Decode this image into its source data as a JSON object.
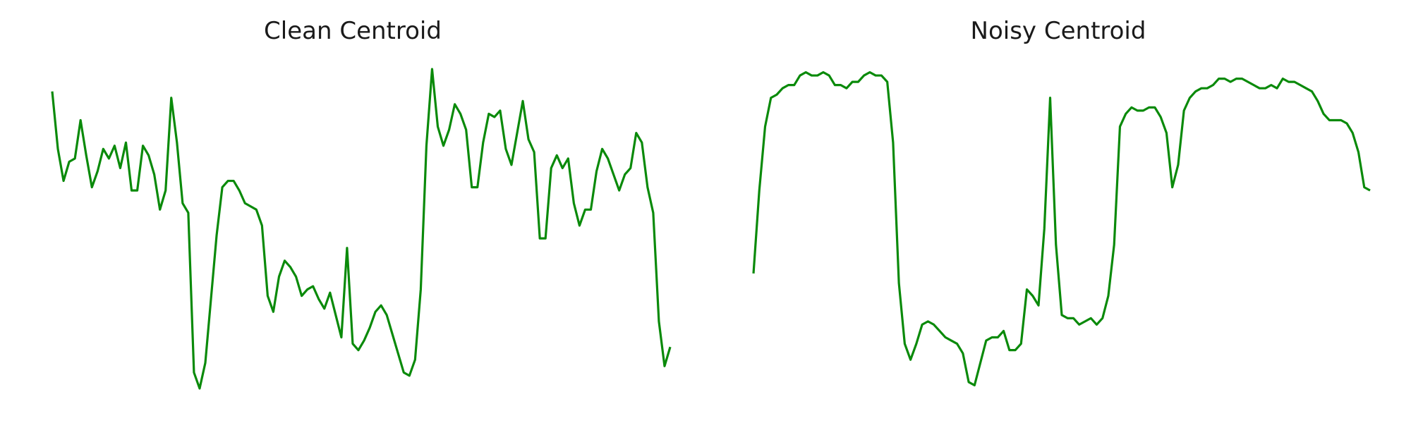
{
  "chart_data": [
    {
      "type": "line",
      "title": "Clean Centroid",
      "xlabel": "",
      "ylabel": "",
      "grid": false,
      "axes_visible": false,
      "ylim": [
        0,
        1
      ],
      "line_color": "#0a8a0a",
      "series": [
        {
          "values": [
            0.93,
            0.75,
            0.65,
            0.71,
            0.72,
            0.84,
            0.73,
            0.63,
            0.68,
            0.75,
            0.72,
            0.76,
            0.69,
            0.77,
            0.62,
            0.62,
            0.76,
            0.73,
            0.67,
            0.56,
            0.62,
            0.91,
            0.77,
            0.58,
            0.55,
            0.05,
            0.0,
            0.08,
            0.28,
            0.48,
            0.63,
            0.65,
            0.65,
            0.62,
            0.58,
            0.57,
            0.56,
            0.51,
            0.29,
            0.24,
            0.35,
            0.4,
            0.38,
            0.35,
            0.29,
            0.31,
            0.32,
            0.28,
            0.25,
            0.3,
            0.23,
            0.16,
            0.44,
            0.14,
            0.12,
            0.15,
            0.19,
            0.24,
            0.26,
            0.23,
            0.17,
            0.11,
            0.05,
            0.04,
            0.09,
            0.31,
            0.76,
            1.0,
            0.82,
            0.76,
            0.81,
            0.89,
            0.86,
            0.81,
            0.63,
            0.63,
            0.77,
            0.86,
            0.85,
            0.87,
            0.75,
            0.7,
            0.8,
            0.9,
            0.78,
            0.74,
            0.47,
            0.47,
            0.69,
            0.73,
            0.69,
            0.72,
            0.58,
            0.51,
            0.56,
            0.56,
            0.68,
            0.75,
            0.72,
            0.67,
            0.62,
            0.67,
            0.69,
            0.8,
            0.77,
            0.63,
            0.55,
            0.21,
            0.07,
            0.13
          ]
        }
      ]
    },
    {
      "type": "line",
      "title": "Noisy Centroid",
      "xlabel": "",
      "ylabel": "",
      "grid": false,
      "axes_visible": false,
      "ylim": [
        0,
        1
      ],
      "line_color": "#0a8a0a",
      "series": [
        {
          "values": [
            0.36,
            0.62,
            0.82,
            0.91,
            0.92,
            0.94,
            0.95,
            0.95,
            0.98,
            0.99,
            0.98,
            0.98,
            0.99,
            0.98,
            0.95,
            0.95,
            0.94,
            0.96,
            0.96,
            0.98,
            0.99,
            0.98,
            0.98,
            0.96,
            0.77,
            0.33,
            0.14,
            0.09,
            0.14,
            0.2,
            0.21,
            0.2,
            0.18,
            0.16,
            0.15,
            0.14,
            0.11,
            0.02,
            0.01,
            0.08,
            0.15,
            0.16,
            0.16,
            0.18,
            0.12,
            0.12,
            0.14,
            0.31,
            0.29,
            0.26,
            0.5,
            0.91,
            0.45,
            0.23,
            0.22,
            0.22,
            0.2,
            0.21,
            0.22,
            0.2,
            0.22,
            0.29,
            0.45,
            0.82,
            0.86,
            0.88,
            0.87,
            0.87,
            0.88,
            0.88,
            0.85,
            0.8,
            0.63,
            0.7,
            0.87,
            0.91,
            0.93,
            0.94,
            0.94,
            0.95,
            0.97,
            0.97,
            0.96,
            0.97,
            0.97,
            0.96,
            0.95,
            0.94,
            0.94,
            0.95,
            0.94,
            0.97,
            0.96,
            0.96,
            0.95,
            0.94,
            0.93,
            0.9,
            0.86,
            0.84,
            0.84,
            0.84,
            0.83,
            0.8,
            0.74,
            0.63,
            0.62
          ]
        }
      ]
    }
  ]
}
